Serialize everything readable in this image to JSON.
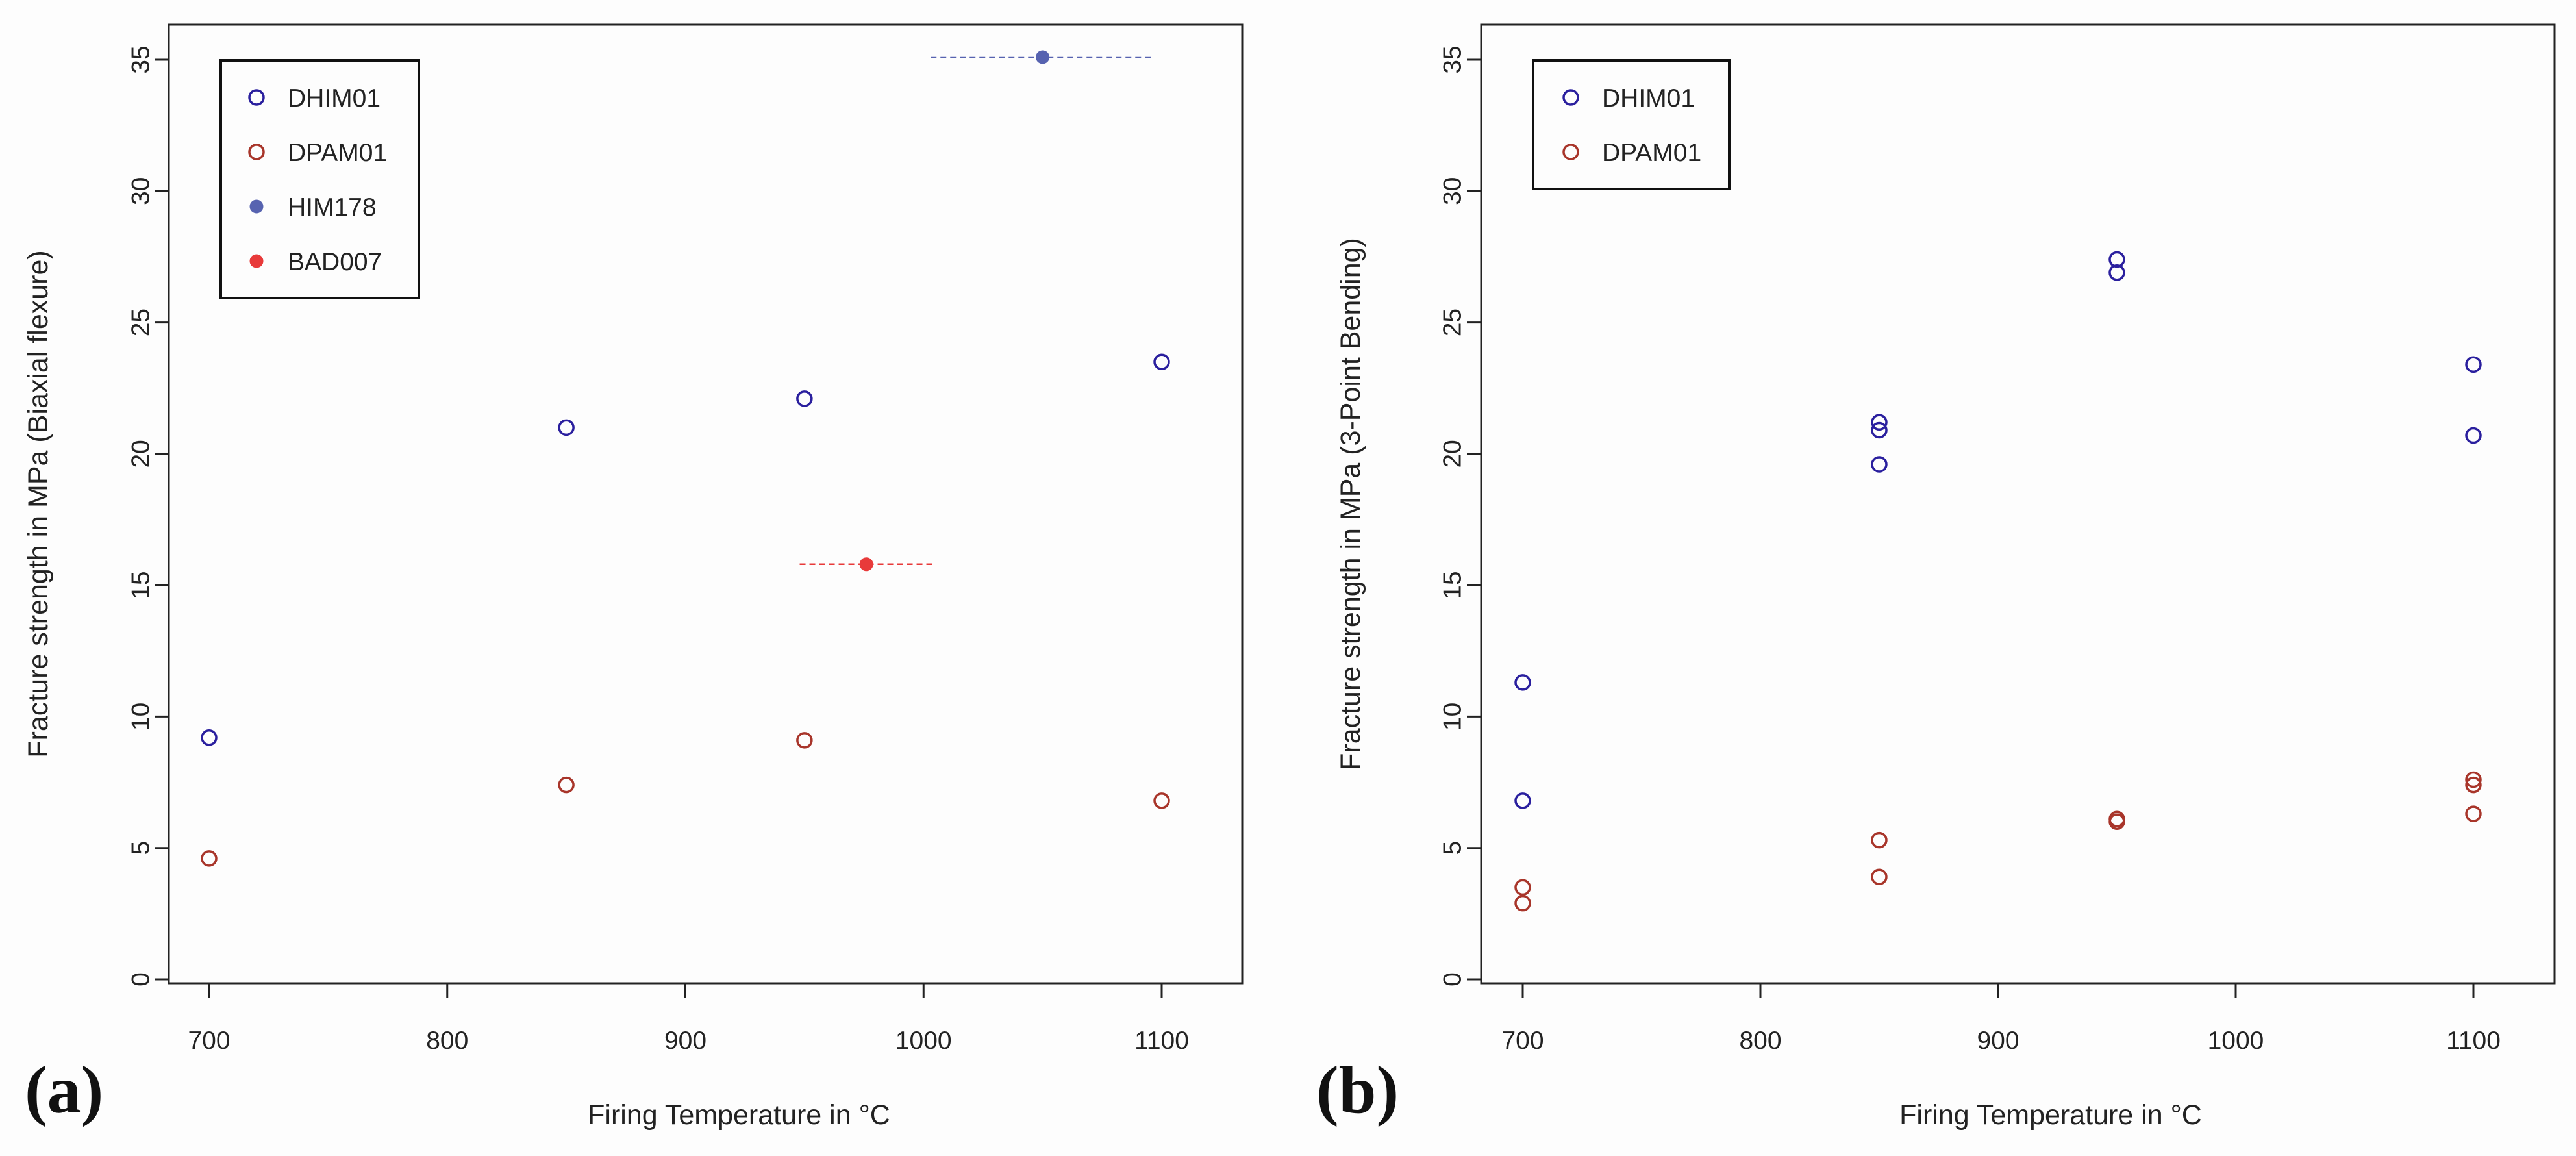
{
  "figure": {
    "panel_labels": [
      "(a)",
      "(b)"
    ]
  },
  "colors": {
    "DHIM01": "#2a1f9e",
    "DPAM01": "#a8352a",
    "HIM178": "#5763b0",
    "BAD007": "#e83a3a"
  },
  "chart_data": [
    {
      "type": "scatter",
      "panel": "(a)",
      "title": "",
      "xlabel": "Firing Temperature in °C",
      "ylabel": "Fracture strength in MPa (Biaxial flexure)",
      "xlim": [
        680,
        1135
      ],
      "ylim": [
        0,
        35
      ],
      "xticks": [
        700,
        800,
        900,
        1000,
        1100
      ],
      "yticks": [
        0,
        5,
        10,
        15,
        20,
        25,
        30,
        35
      ],
      "legend_position": "top-left",
      "series": [
        {
          "name": "DHIM01",
          "marker": "open-circle",
          "x": [
            700,
            850,
            950,
            1100
          ],
          "y": [
            9.2,
            21.0,
            22.1,
            23.5
          ]
        },
        {
          "name": "DPAM01",
          "marker": "open-circle",
          "x": [
            700,
            850,
            950,
            1100
          ],
          "y": [
            4.6,
            7.4,
            9.1,
            6.8
          ]
        },
        {
          "name": "HIM178",
          "marker": "filled-circle",
          "x": [
            1050
          ],
          "y": [
            35.1
          ],
          "xerr_range": [
            [
              1003,
              1097
            ]
          ]
        },
        {
          "name": "BAD007",
          "marker": "filled-circle",
          "x": [
            976
          ],
          "y": [
            15.8
          ],
          "xerr_range": [
            [
              948,
              1004
            ]
          ]
        }
      ]
    },
    {
      "type": "scatter",
      "panel": "(b)",
      "title": "",
      "xlabel": "Firing Temperature in °C",
      "ylabel": "Fracture strength in MPa (3-Point Bending)",
      "xlim": [
        680,
        1135
      ],
      "ylim": [
        0,
        35
      ],
      "xticks": [
        700,
        800,
        900,
        1000,
        1100
      ],
      "yticks": [
        0,
        5,
        10,
        15,
        20,
        25,
        30,
        35
      ],
      "legend_position": "top-left",
      "series": [
        {
          "name": "DHIM01",
          "marker": "open-circle",
          "x": [
            700,
            700,
            850,
            850,
            850,
            950,
            950,
            1100,
            1100
          ],
          "y": [
            11.3,
            6.8,
            21.2,
            20.9,
            19.6,
            27.4,
            26.9,
            23.4,
            20.7
          ]
        },
        {
          "name": "DPAM01",
          "marker": "open-circle",
          "x": [
            700,
            700,
            850,
            850,
            950,
            950,
            1100,
            1100,
            1100
          ],
          "y": [
            3.5,
            2.9,
            5.3,
            3.9,
            6.1,
            6.0,
            7.6,
            7.4,
            6.3
          ]
        }
      ]
    }
  ]
}
